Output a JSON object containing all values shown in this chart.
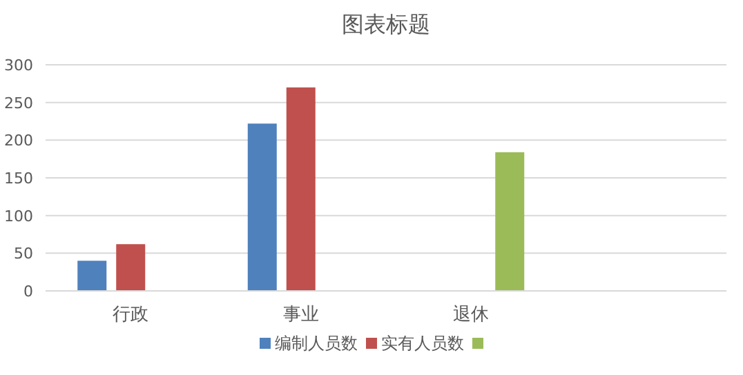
{
  "chart_data": {
    "type": "bar",
    "title": "图表标题",
    "categories": [
      "行政",
      "事业",
      "退休",
      null
    ],
    "series": [
      {
        "name": "编制人员数",
        "color": "#4f81bd",
        "values": [
          40,
          222,
          null,
          null
        ]
      },
      {
        "name": "实有人员数",
        "color": "#c0504d",
        "values": [
          62,
          270,
          null,
          null
        ]
      },
      {
        "color": "#9bbb59",
        "values": [
          null,
          null,
          184,
          null
        ]
      }
    ],
    "ylim": [
      0,
      300
    ],
    "yticks": [
      0,
      50,
      100,
      150,
      200,
      250,
      300
    ],
    "grid": "y",
    "legend": "bottom"
  }
}
